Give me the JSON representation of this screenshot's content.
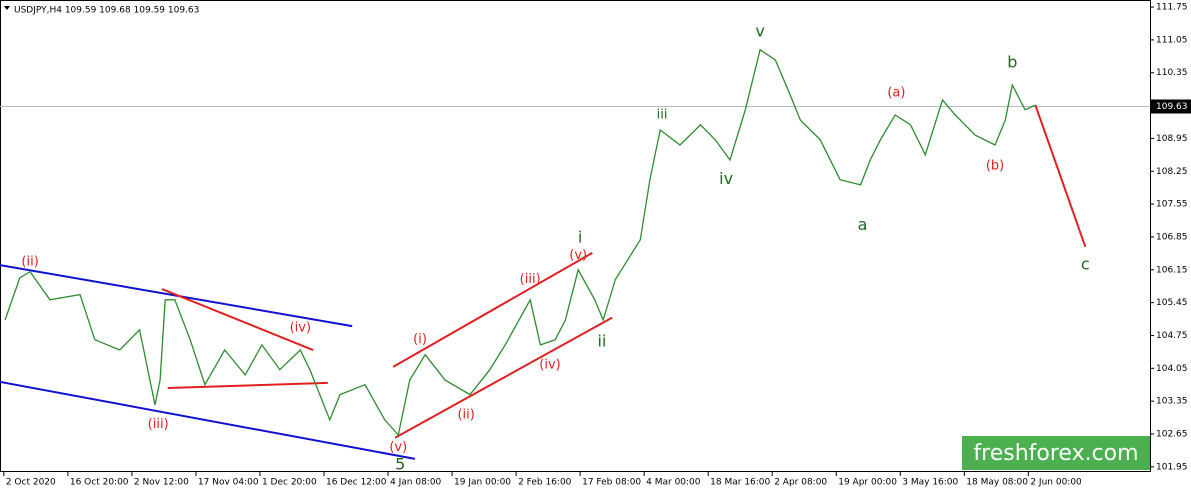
{
  "chart_data": {
    "type": "line",
    "title": "USDJPY,H4  109.59 109.68 109.59 109.63",
    "watermark": "freshforex.com",
    "color": "#2e8b2e",
    "x": [
      0.02,
      0.25,
      0.41,
      0.72,
      1.19,
      1.42,
      1.81,
      2.12,
      2.36,
      2.44,
      2.52,
      2.67,
      2.91,
      3.14,
      3.45,
      3.77,
      4.03,
      4.31,
      4.63,
      4.78,
      5.09,
      5.25,
      5.64,
      5.95,
      6.16,
      6.34,
      6.58,
      6.89,
      7.28,
      7.59,
      7.83,
      8.22,
      8.38,
      8.61,
      8.77,
      8.97,
      9.23,
      9.36,
      9.55,
      9.94,
      10.09,
      10.25,
      10.56,
      10.88,
      11.11,
      11.34,
      11.58,
      11.81,
      12.05,
      12.28,
      12.44,
      12.75,
      13.06,
      13.38,
      13.53,
      13.69,
      13.92,
      14.16,
      14.39,
      14.66,
      14.86,
      15.17,
      15.48,
      15.64,
      15.75,
      15.95,
      16.11
    ],
    "values": [
      105.08,
      105.98,
      106.11,
      105.51,
      105.62,
      104.66,
      104.44,
      104.87,
      103.27,
      103.8,
      105.51,
      105.51,
      104.66,
      103.7,
      104.44,
      103.91,
      104.55,
      104.02,
      104.44,
      104.02,
      102.95,
      103.49,
      103.7,
      102.95,
      102.63,
      103.8,
      104.34,
      103.8,
      103.49,
      104.02,
      104.55,
      105.51,
      104.55,
      104.66,
      105.08,
      106.15,
      105.51,
      105.08,
      105.94,
      106.79,
      108.07,
      109.13,
      108.81,
      109.24,
      108.92,
      108.49,
      109.56,
      110.84,
      110.62,
      109.88,
      109.34,
      108.92,
      108.07,
      107.96,
      108.49,
      108.92,
      109.45,
      109.24,
      108.6,
      109.77,
      109.45,
      109.02,
      108.81,
      109.34,
      110.09,
      109.56,
      109.66
    ],
    "current_price": 109.63,
    "xlim": [
      -0.06,
      17.9
    ],
    "ylim": [
      101.84,
      111.9
    ],
    "yticks": [
      101.95,
      102.65,
      103.35,
      104.05,
      104.75,
      105.45,
      106.15,
      106.85,
      107.55,
      108.25,
      108.95,
      109.65,
      110.35,
      111.05,
      111.75
    ],
    "xticks": [
      {
        "value": 0,
        "label": "2 Oct 2020"
      },
      {
        "value": 1,
        "label": "16 Oct 20:00"
      },
      {
        "value": 2,
        "label": "2 Nov 12:00"
      },
      {
        "value": 3,
        "label": "17 Nov 04:00"
      },
      {
        "value": 4,
        "label": "1 Dec 20:00"
      },
      {
        "value": 5,
        "label": "16 Dec 12:00"
      },
      {
        "value": 6,
        "label": "4 Jan 08:00"
      },
      {
        "value": 7,
        "label": "19 Jan 00:00"
      },
      {
        "value": 8,
        "label": "2 Feb 16:00"
      },
      {
        "value": 9,
        "label": "17 Feb 08:00"
      },
      {
        "value": 10,
        "label": "4 Mar 00:00"
      },
      {
        "value": 11,
        "label": "18 Mar 16:00"
      },
      {
        "value": 12,
        "label": "2 Apr 08:00"
      },
      {
        "value": 13,
        "label": "19 Apr 00:00"
      },
      {
        "value": 14,
        "label": "3 May 16:00"
      },
      {
        "value": 15,
        "label": "18 May 08:00"
      },
      {
        "value": 16,
        "label": "2 Jun 00:00"
      }
    ],
    "annotations": [
      {
        "text": "(ii)",
        "x": 0.41,
        "y": 106.32,
        "color": "#e02020"
      },
      {
        "text": "(iii)",
        "x": 2.41,
        "y": 102.85,
        "color": "#e02020"
      },
      {
        "text": "(iv)",
        "x": 4.63,
        "y": 104.91,
        "color": "#e02020"
      },
      {
        "text": "(v)",
        "x": 6.16,
        "y": 102.36,
        "color": "#e02020"
      },
      {
        "text": "5",
        "x": 6.19,
        "y": 101.99,
        "color": "#1e6b1e"
      },
      {
        "text": "(i)",
        "x": 6.5,
        "y": 104.66,
        "color": "#e02020"
      },
      {
        "text": "(ii)",
        "x": 7.22,
        "y": 103.06,
        "color": "#e02020"
      },
      {
        "text": "(iii)",
        "x": 8.22,
        "y": 105.94,
        "color": "#e02020"
      },
      {
        "text": "(iv)",
        "x": 8.53,
        "y": 104.12,
        "color": "#e02020"
      },
      {
        "text": "(v)",
        "x": 8.97,
        "y": 106.45,
        "color": "#e02020"
      },
      {
        "text": "i",
        "x": 9.0,
        "y": 106.83,
        "color": "#1e6b1e"
      },
      {
        "text": "ii",
        "x": 9.34,
        "y": 104.61,
        "color": "#1e6b1e"
      },
      {
        "text": "iii",
        "x": 10.28,
        "y": 109.45,
        "color": "#1e6b1e"
      },
      {
        "text": "iv",
        "x": 11.28,
        "y": 108.07,
        "color": "#1e6b1e"
      },
      {
        "text": "v",
        "x": 11.81,
        "y": 111.22,
        "color": "#1e6b1e"
      },
      {
        "text": "a",
        "x": 13.41,
        "y": 107.09,
        "color": "#1e6b1e"
      },
      {
        "text": "(a)",
        "x": 13.94,
        "y": 109.92,
        "color": "#e02020"
      },
      {
        "text": "(b)",
        "x": 15.48,
        "y": 108.36,
        "color": "#e02020"
      },
      {
        "text": "b",
        "x": 15.75,
        "y": 110.56,
        "color": "#1e6b1e"
      },
      {
        "text": "c",
        "x": 16.89,
        "y": 106.25,
        "color": "#1e6b1e"
      }
    ],
    "trend_lines": [
      {
        "x": [
          -0.06,
          5.44
        ],
        "y": [
          106.25,
          104.95
        ],
        "color": "#1010d0"
      },
      {
        "x": [
          -0.06,
          6.42
        ],
        "y": [
          103.76,
          102.12
        ],
        "color": "#1010d0"
      },
      {
        "x": [
          2.47,
          4.83
        ],
        "y": [
          105.74,
          104.44
        ],
        "color": "#e02020"
      },
      {
        "x": [
          2.56,
          5.06
        ],
        "y": [
          103.63,
          103.74
        ],
        "color": "#e02020"
      },
      {
        "x": [
          6.11,
          9.5
        ],
        "y": [
          102.57,
          105.13
        ],
        "color": "#e02020"
      },
      {
        "x": [
          6.08,
          9.19
        ],
        "y": [
          104.08,
          106.51
        ],
        "color": "#e02020"
      },
      {
        "x": [
          16.11,
          16.89
        ],
        "y": [
          109.66,
          106.64
        ],
        "color": "#e02020"
      }
    ]
  }
}
